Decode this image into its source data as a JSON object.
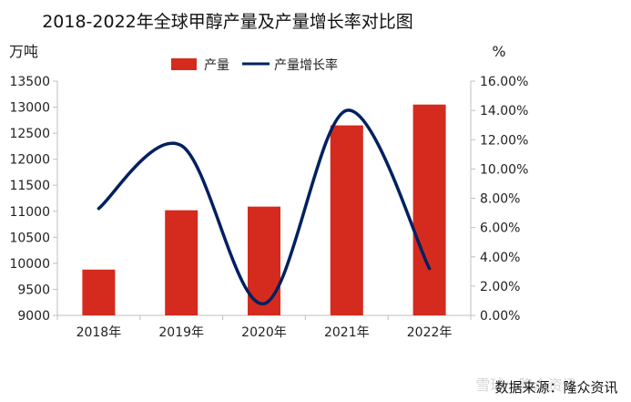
{
  "chart_data": {
    "type": "bar",
    "title": "2018-2022年全球甲醇产量及产量增长率对比图",
    "categories": [
      "2018年",
      "2019年",
      "2020年",
      "2021年",
      "2022年"
    ],
    "y_left_label": "万吨",
    "y_right_label": "%",
    "y_left_lim": [
      9000,
      13500
    ],
    "y_left_ticks": [
      "9000",
      "9500",
      "10000",
      "10500",
      "11000",
      "11500",
      "12000",
      "12500",
      "13000",
      "13500"
    ],
    "y_right_lim": [
      0,
      16
    ],
    "y_right_ticks": [
      "0.00%",
      "2.00%",
      "4.00%",
      "6.00%",
      "8.00%",
      "10.00%",
      "12.00%",
      "14.00%",
      "16.00%"
    ],
    "series": [
      {
        "name": "产量",
        "type": "bar",
        "axis": "left",
        "color": "#d52b1e",
        "values": [
          9880,
          11020,
          11090,
          12650,
          13050
        ]
      },
      {
        "name": "产量增长率",
        "type": "line",
        "axis": "right",
        "color": "#002060",
        "values": [
          7.3,
          11.6,
          0.8,
          14.0,
          3.2
        ]
      }
    ],
    "legend_position": "top-center",
    "grid": false,
    "source": "数据来源：隆众资讯",
    "watermark": "雪球 · 隆众资讯"
  }
}
